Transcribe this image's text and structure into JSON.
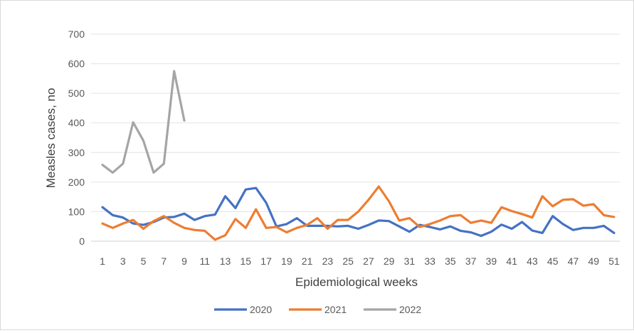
{
  "chart_data": {
    "type": "line",
    "title": "",
    "xlabel": "Epidemiological weeks",
    "ylabel": "Measles cases, no",
    "ylim": [
      0,
      700
    ],
    "yticks": [
      0,
      100,
      200,
      300,
      400,
      500,
      600,
      700
    ],
    "xlim": [
      1,
      51
    ],
    "xticks": [
      1,
      3,
      5,
      7,
      9,
      11,
      13,
      15,
      17,
      19,
      21,
      23,
      25,
      27,
      29,
      31,
      33,
      35,
      37,
      39,
      41,
      43,
      45,
      47,
      49,
      51
    ],
    "grid": "horizontal",
    "legend": "bottom",
    "series": [
      {
        "name": "2020",
        "color": "#4472C4",
        "x": [
          1,
          2,
          3,
          4,
          5,
          6,
          7,
          8,
          9,
          10,
          11,
          12,
          13,
          14,
          15,
          16,
          17,
          18,
          19,
          20,
          21,
          22,
          23,
          24,
          25,
          26,
          27,
          28,
          29,
          30,
          31,
          32,
          33,
          34,
          35,
          36,
          37,
          38,
          39,
          40,
          41,
          42,
          43,
          44,
          45,
          46,
          47,
          48,
          49,
          50,
          51
        ],
        "values": [
          115,
          88,
          80,
          60,
          55,
          65,
          80,
          82,
          93,
          72,
          85,
          90,
          152,
          112,
          175,
          180,
          130,
          50,
          58,
          78,
          52,
          52,
          52,
          50,
          52,
          42,
          55,
          70,
          68,
          50,
          32,
          55,
          48,
          40,
          50,
          35,
          30,
          18,
          32,
          56,
          42,
          65,
          36,
          28,
          85,
          58,
          38,
          45,
          45,
          52,
          28
        ]
      },
      {
        "name": "2021",
        "color": "#ED7D31",
        "x": [
          1,
          2,
          3,
          4,
          5,
          6,
          7,
          8,
          9,
          10,
          11,
          12,
          13,
          14,
          15,
          16,
          17,
          18,
          19,
          20,
          21,
          22,
          23,
          24,
          25,
          26,
          27,
          28,
          29,
          30,
          31,
          32,
          33,
          34,
          35,
          36,
          37,
          38,
          39,
          40,
          41,
          42,
          43,
          44,
          45,
          46,
          47,
          48,
          49,
          50,
          51
        ],
        "values": [
          60,
          45,
          60,
          72,
          42,
          68,
          85,
          62,
          45,
          38,
          35,
          5,
          20,
          75,
          45,
          108,
          45,
          48,
          30,
          45,
          55,
          78,
          42,
          72,
          72,
          100,
          140,
          185,
          135,
          70,
          78,
          48,
          58,
          70,
          85,
          88,
          62,
          70,
          62,
          115,
          102,
          92,
          80,
          152,
          118,
          140,
          142,
          120,
          125,
          88,
          82
        ]
      },
      {
        "name": "2022",
        "color": "#A5A5A5",
        "x": [
          1,
          2,
          3,
          4,
          5,
          6,
          7,
          8,
          9
        ],
        "values": [
          258,
          232,
          262,
          402,
          340,
          232,
          262,
          575,
          408
        ]
      }
    ]
  }
}
